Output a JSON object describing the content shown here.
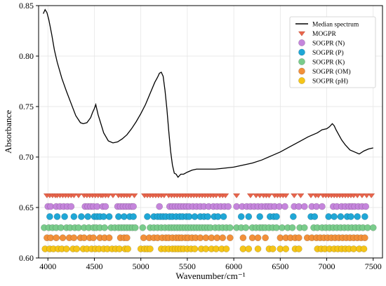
{
  "chart_data": {
    "type": "line",
    "title": "",
    "xlabel": "Wavenumber/cm⁻¹",
    "ylabel": "Absorbance",
    "xlim": [
      3900,
      7600
    ],
    "ylim": [
      0.6,
      0.85
    ],
    "xticks": [
      4000,
      4500,
      5000,
      5500,
      6000,
      6500,
      7000,
      7500
    ],
    "yticks": [
      0.6,
      0.65,
      0.7,
      0.75,
      0.8,
      0.85
    ],
    "grid": true,
    "legend_position": "top-right",
    "colors": {
      "line": "#000000",
      "MOGPR": "#e8654c",
      "N": "#c585dc",
      "P": "#1fa7d6",
      "K": "#79cc8b",
      "OM": "#f2903a",
      "pH": "#f5c518"
    },
    "line_series": {
      "name": "Median spectrum",
      "x": [
        3950,
        3970,
        3990,
        4010,
        4040,
        4070,
        4100,
        4150,
        4200,
        4250,
        4300,
        4350,
        4380,
        4420,
        4460,
        4480,
        4500,
        4515,
        4525,
        4540,
        4570,
        4600,
        4650,
        4700,
        4750,
        4800,
        4850,
        4900,
        4950,
        5000,
        5050,
        5100,
        5150,
        5180,
        5200,
        5220,
        5240,
        5260,
        5280,
        5300,
        5320,
        5340,
        5360,
        5380,
        5400,
        5430,
        5460,
        5500,
        5550,
        5600,
        5700,
        5800,
        5900,
        6000,
        6100,
        6200,
        6300,
        6400,
        6500,
        6600,
        6700,
        6800,
        6900,
        6950,
        7000,
        7030,
        7060,
        7080,
        7100,
        7130,
        7160,
        7200,
        7250,
        7300,
        7350,
        7400,
        7450,
        7500
      ],
      "y": [
        0.842,
        0.846,
        0.843,
        0.836,
        0.822,
        0.806,
        0.794,
        0.778,
        0.765,
        0.753,
        0.741,
        0.734,
        0.733,
        0.734,
        0.739,
        0.744,
        0.748,
        0.752,
        0.748,
        0.742,
        0.733,
        0.724,
        0.716,
        0.714,
        0.715,
        0.718,
        0.722,
        0.728,
        0.735,
        0.743,
        0.752,
        0.763,
        0.774,
        0.779,
        0.783,
        0.784,
        0.78,
        0.766,
        0.748,
        0.726,
        0.706,
        0.692,
        0.684,
        0.683,
        0.68,
        0.683,
        0.683,
        0.685,
        0.687,
        0.688,
        0.688,
        0.688,
        0.689,
        0.69,
        0.692,
        0.694,
        0.697,
        0.701,
        0.705,
        0.71,
        0.715,
        0.72,
        0.724,
        0.727,
        0.728,
        0.73,
        0.733,
        0.731,
        0.727,
        0.722,
        0.717,
        0.712,
        0.707,
        0.705,
        0.703,
        0.706,
        0.708,
        0.709
      ]
    },
    "selection_series": [
      {
        "name": "MOGPR",
        "marker": "triangle",
        "y": 0.662,
        "x": [
          3990,
          4020,
          4050,
          4080,
          4100,
          4130,
          4160,
          4190,
          4220,
          4250,
          4280,
          4330,
          4390,
          4420,
          4450,
          4480,
          4510,
          4540,
          4570,
          4590,
          4620,
          4650,
          4700,
          4760,
          4790,
          4820,
          4850,
          4880,
          4930,
          5040,
          5070,
          5100,
          5130,
          5160,
          5190,
          5220,
          5250,
          5300,
          5330,
          5360,
          5390,
          5420,
          5450,
          5480,
          5510,
          5540,
          5570,
          5600,
          5630,
          5660,
          5690,
          5720,
          5750,
          5780,
          5810,
          5850,
          5880,
          5910,
          6030,
          6180,
          6240,
          6280,
          6320,
          6350,
          6380,
          6440,
          6470,
          6500,
          6530,
          6560,
          6650,
          6720,
          6830,
          6880,
          6910,
          6960,
          6990,
          7020,
          7050,
          7080,
          7110,
          7140,
          7170,
          7200,
          7230,
          7260,
          7290,
          7330,
          7380,
          7430,
          7480
        ]
      },
      {
        "name": "SOGPR (N)",
        "marker": "circle",
        "y": 0.651,
        "x": [
          4000,
          4030,
          4090,
          4130,
          4170,
          4210,
          4250,
          4400,
          4430,
          4460,
          4490,
          4530,
          4590,
          4620,
          4750,
          4780,
          4810,
          4840,
          4870,
          4900,
          4920,
          5200,
          5310,
          5340,
          5370,
          5400,
          5430,
          5460,
          5490,
          5520,
          5560,
          5600,
          5640,
          5680,
          5730,
          5780,
          5820,
          5860,
          5900,
          5940,
          6030,
          6090,
          6140,
          6180,
          6220,
          6260,
          6300,
          6340,
          6370,
          6400,
          6440,
          6490,
          6550,
          6650,
          6700,
          6760,
          6840,
          6890,
          6950,
          7070,
          7110,
          7160,
          7200,
          7240,
          7270,
          7300,
          7340,
          7380,
          7420
        ]
      },
      {
        "name": "SOGPR (P)",
        "marker": "circle",
        "y": 0.641,
        "x": [
          4020,
          4100,
          4180,
          4280,
          4360,
          4430,
          4500,
          4530,
          4560,
          4600,
          4660,
          4760,
          4820,
          4880,
          4920,
          5070,
          5140,
          5180,
          5210,
          5240,
          5270,
          5310,
          5340,
          5380,
          5420,
          5450,
          5490,
          5520,
          5580,
          5640,
          5680,
          5720,
          5790,
          5830,
          5890,
          6080,
          6160,
          6280,
          6390,
          6430,
          6460,
          6640,
          6830,
          6870,
          7020,
          7080,
          7150,
          7220,
          7260,
          7330,
          7410
        ]
      },
      {
        "name": "SOGPR (K)",
        "marker": "circle",
        "y": 0.63,
        "x": [
          3960,
          4010,
          4050,
          4090,
          4140,
          4200,
          4240,
          4290,
          4330,
          4390,
          4440,
          4490,
          4520,
          4560,
          4610,
          4680,
          4720,
          4760,
          4790,
          4820,
          4850,
          4880,
          4910,
          4940,
          5020,
          5100,
          5140,
          5180,
          5220,
          5260,
          5300,
          5330,
          5360,
          5390,
          5420,
          5450,
          5480,
          5510,
          5540,
          5570,
          5600,
          5630,
          5660,
          5690,
          5720,
          5750,
          5800,
          5840,
          5880,
          5920,
          5960,
          6030,
          6080,
          6130,
          6200,
          6240,
          6280,
          6310,
          6340,
          6380,
          6420,
          6460,
          6520,
          6580,
          6630,
          6710,
          6760,
          6860,
          6900,
          6950,
          6990,
          7030,
          7070,
          7110,
          7150,
          7190,
          7230,
          7270,
          7310,
          7350,
          7390,
          7440,
          7500
        ]
      },
      {
        "name": "SOGPR (OM)",
        "marker": "circle",
        "y": 0.62,
        "x": [
          3990,
          4030,
          4090,
          4160,
          4230,
          4280,
          4350,
          4390,
          4450,
          4490,
          4560,
          4610,
          4660,
          4780,
          4820,
          4850,
          5030,
          5090,
          5140,
          5180,
          5230,
          5270,
          5300,
          5340,
          5380,
          5410,
          5440,
          5480,
          5510,
          5550,
          5590,
          5640,
          5700,
          5760,
          5820,
          5880,
          5960,
          6100,
          6200,
          6260,
          6340,
          6500,
          6560,
          6610,
          6660,
          6700,
          6790,
          6840,
          6890,
          6930,
          6970,
          7010,
          7050,
          7090,
          7130,
          7170,
          7210,
          7250,
          7290,
          7330,
          7370,
          7410
        ]
      },
      {
        "name": "SOGPR (pH)",
        "marker": "circle",
        "y": 0.609,
        "x": [
          3970,
          4020,
          4060,
          4110,
          4150,
          4200,
          4270,
          4310,
          4380,
          4420,
          4470,
          4510,
          4550,
          4600,
          4640,
          4690,
          4730,
          4770,
          4830,
          4860,
          5000,
          5040,
          5070,
          5100,
          5220,
          5260,
          5300,
          5340,
          5370,
          5400,
          5430,
          5460,
          5500,
          5540,
          5580,
          5650,
          5700,
          5760,
          5810,
          5870,
          5920,
          6100,
          6160,
          6260,
          6380,
          6420,
          6500,
          6560,
          6660,
          6700,
          6900,
          6940,
          6980,
          7030,
          7080,
          7120,
          7160,
          7200,
          7240,
          7290,
          7350,
          7400
        ]
      }
    ]
  }
}
